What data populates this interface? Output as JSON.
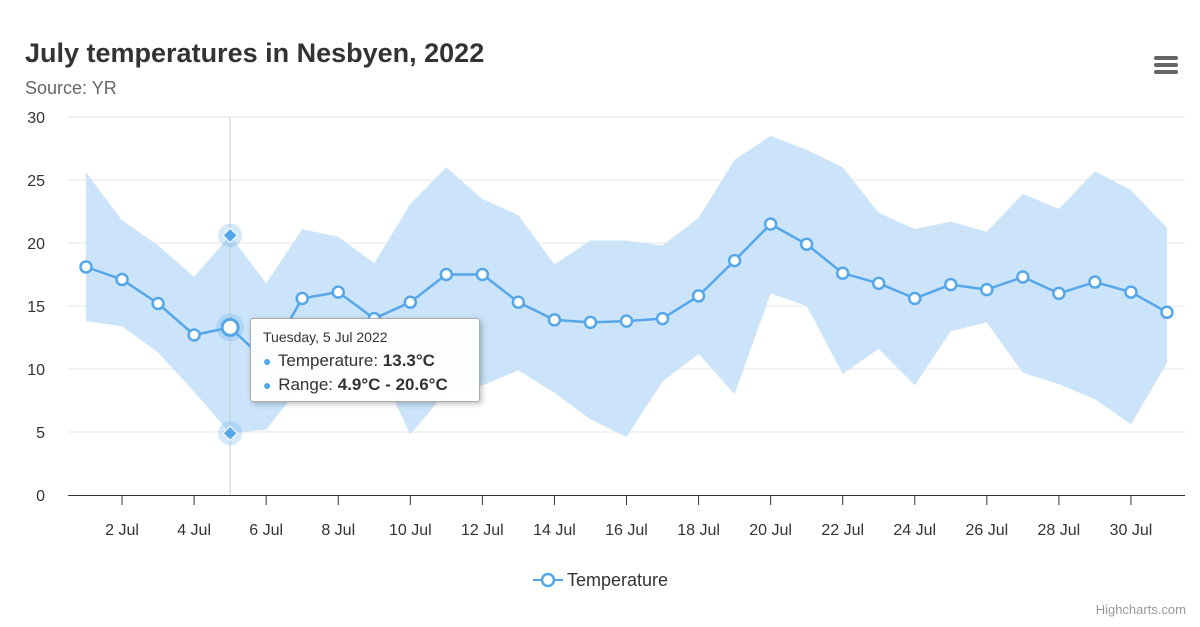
{
  "header": {
    "title": "July temperatures in Nesbyen, 2022",
    "subtitle": "Source: YR"
  },
  "menu": {
    "icon": "hamburger-menu-icon"
  },
  "tooltip": {
    "date": "Tuesday, 5 Jul 2022",
    "temperature_label": "Temperature: ",
    "temperature_value": "13.3°C",
    "range_label": "Range: ",
    "range_value": "4.9°C - 20.6°C",
    "active_day": 5
  },
  "legend": {
    "label": "Temperature"
  },
  "credits": "Highcharts.com",
  "colors": {
    "line": "#55a7ea",
    "range_fill": "#cce4fa",
    "grid": "#e6e6e6",
    "axis": "#333333",
    "crosshair": "#cccccc"
  },
  "chart_data": {
    "type": "line",
    "title": "July temperatures in Nesbyen, 2022",
    "subtitle": "Source: YR",
    "xlabel": "",
    "ylabel": "",
    "x": [
      1,
      2,
      3,
      4,
      5,
      6,
      7,
      8,
      9,
      10,
      11,
      12,
      13,
      14,
      15,
      16,
      17,
      18,
      19,
      20,
      21,
      22,
      23,
      24,
      25,
      26,
      27,
      28,
      29,
      30,
      31
    ],
    "x_tick_values": [
      2,
      4,
      6,
      8,
      10,
      12,
      14,
      16,
      18,
      20,
      22,
      24,
      26,
      28,
      30
    ],
    "x_tick_labels": [
      "2 Jul",
      "4 Jul",
      "6 Jul",
      "8 Jul",
      "10 Jul",
      "12 Jul",
      "14 Jul",
      "16 Jul",
      "18 Jul",
      "20 Jul",
      "22 Jul",
      "24 Jul",
      "26 Jul",
      "28 Jul",
      "30 Jul"
    ],
    "y_ticks": [
      0,
      5,
      10,
      15,
      20,
      25,
      30
    ],
    "ylim": [
      0,
      30
    ],
    "grid": true,
    "legend_position": "bottom",
    "series": [
      {
        "name": "Temperature",
        "type": "line",
        "values": [
          18.1,
          17.1,
          15.2,
          12.7,
          13.3,
          10.6,
          15.6,
          16.1,
          14.0,
          15.3,
          17.5,
          17.5,
          15.3,
          13.9,
          13.7,
          13.8,
          14.0,
          15.8,
          18.6,
          21.5,
          19.9,
          17.6,
          16.8,
          15.6,
          16.7,
          16.3,
          17.3,
          16.0,
          16.9,
          16.1,
          14.5
        ]
      },
      {
        "name": "Range",
        "type": "arearange",
        "low": [
          13.8,
          13.4,
          11.3,
          8.2,
          4.9,
          5.2,
          8.8,
          9.4,
          10.9,
          4.8,
          8.2,
          8.7,
          9.9,
          8.1,
          6.0,
          4.6,
          9.0,
          11.2,
          8.0,
          16.0,
          15.0,
          9.6,
          11.6,
          8.7,
          13.0,
          13.7,
          9.7,
          8.8,
          7.6,
          5.6,
          10.5
        ],
        "high": [
          25.6,
          21.8,
          19.8,
          17.3,
          20.6,
          16.8,
          21.1,
          20.5,
          18.4,
          23.1,
          26.0,
          23.5,
          22.2,
          18.3,
          20.2,
          20.2,
          19.8,
          22.0,
          26.6,
          28.5,
          27.4,
          26.0,
          22.4,
          21.1,
          21.7,
          20.9,
          23.9,
          22.7,
          25.7,
          24.2,
          21.2
        ]
      }
    ]
  }
}
